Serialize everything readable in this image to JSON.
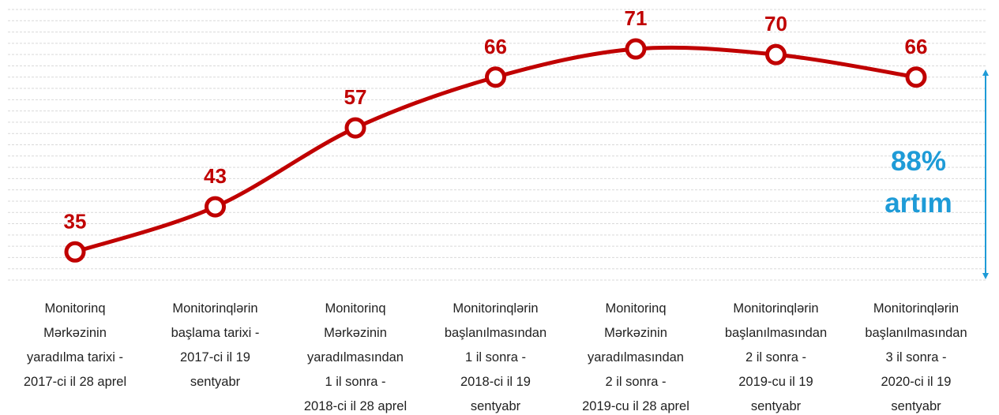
{
  "chart_data": {
    "type": "line",
    "categories": [
      "Monitorinq\nMərkəzinin\nyaradılma tarixi -\n2017-ci il 28 aprel",
      "Monitorinqlərin\nbaşlama tarixi -\n2017-ci il 19\nsentyabr",
      "Monitorinq\nMərkəzinin\nyaradılmasından\n1 il sonra -\n2018-ci il 28 aprel",
      "Monitorinqlərin\nbaşlanılmasından\n1 il sonra -\n2018-ci il 19\nsentyabr",
      "Monitorinq\nMərkəzinin\nyaradılmasından\n2 il sonra -\n2019-cu il 28 aprel",
      "Monitorinqlərin\nbaşlanılmasından\n2 il sonra -\n2019-cu il 19\nsentyabr",
      "Monitorinqlərin\nbaşlanılmasından\n3 il sonra -\n2020-ci il 19\nsentyabr"
    ],
    "values": [
      35,
      43,
      57,
      66,
      71,
      70,
      66
    ],
    "color": "#c00000",
    "ylim": [
      30,
      78
    ],
    "yticks": [
      30,
      32,
      34,
      36,
      38,
      40,
      42,
      44,
      46,
      48,
      50,
      52,
      54,
      56,
      58,
      60,
      62,
      64,
      66,
      68,
      70,
      72,
      74,
      76,
      78
    ],
    "grid": true,
    "annotation": {
      "lines": [
        "88%",
        "artım"
      ],
      "color": "#1e9bd7"
    }
  }
}
